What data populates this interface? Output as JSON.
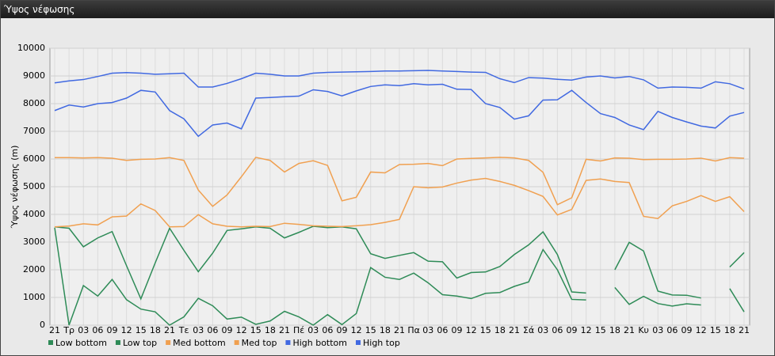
{
  "window_title": "Ύψος νέφωσης",
  "chart_data": {
    "type": "line",
    "y_label": "Ύψος νέφωσης (m)",
    "categories": [
      "21",
      "Tρ",
      "03",
      "06",
      "09",
      "12",
      "15",
      "18",
      "21",
      "Tε",
      "03",
      "06",
      "09",
      "12",
      "15",
      "18",
      "21",
      "Πέ",
      "03",
      "06",
      "09",
      "12",
      "15",
      "18",
      "21",
      "Πα",
      "03",
      "06",
      "09",
      "12",
      "15",
      "18",
      "21",
      "Σά",
      "03",
      "06",
      "09",
      "12",
      "15",
      "18",
      "21",
      "Κυ",
      "03",
      "06",
      "09",
      "12",
      "15",
      "18",
      "21"
    ],
    "ylim": [
      0,
      10000
    ],
    "yticks": [
      0,
      1000,
      2000,
      3000,
      4000,
      5000,
      6000,
      7000,
      8000,
      9000,
      10000
    ],
    "grid": true,
    "legend": "bottom",
    "series": [
      {
        "name": "Low bottom",
        "color": "#2e8b57",
        "values": [
          3520,
          0,
          1430,
          1050,
          1650,
          920,
          580,
          480,
          0,
          300,
          970,
          700,
          220,
          290,
          30,
          150,
          500,
          300,
          0,
          380,
          20,
          420,
          2080,
          1730,
          1650,
          1880,
          1530,
          1100,
          1050,
          960,
          1150,
          1180,
          1400,
          1560,
          2730,
          2000,
          930,
          910,
          null,
          1360,
          750,
          1040,
          780,
          690,
          770,
          730,
          null,
          1320,
          480
        ]
      },
      {
        "name": "Low top",
        "color": "#2e8b57",
        "values": [
          3550,
          3500,
          2830,
          3150,
          3380,
          2150,
          950,
          2250,
          3500,
          2700,
          1930,
          2600,
          3420,
          3480,
          3550,
          3500,
          3150,
          3350,
          3570,
          3520,
          3550,
          3480,
          2580,
          2410,
          2520,
          2620,
          2310,
          2290,
          1700,
          1900,
          1920,
          2120,
          2550,
          2900,
          3370,
          2550,
          1200,
          1160,
          null,
          2000,
          2990,
          2680,
          1230,
          1090,
          1080,
          980,
          null,
          2100,
          2620
        ]
      },
      {
        "name": "Med bottom",
        "color": "#f0a050",
        "values": [
          3550,
          3580,
          3660,
          3620,
          3910,
          3940,
          4380,
          4140,
          3550,
          3560,
          3990,
          3660,
          3570,
          3550,
          3570,
          3560,
          3680,
          3640,
          3590,
          3570,
          3560,
          3590,
          3630,
          3710,
          3820,
          5000,
          4960,
          4990,
          5130,
          5240,
          5300,
          5190,
          5050,
          4860,
          4650,
          3980,
          4180,
          5230,
          5280,
          5190,
          5150,
          3930,
          3850,
          4310,
          4470,
          4680,
          4470,
          4640,
          4100
        ]
      },
      {
        "name": "Med top",
        "color": "#f0a050",
        "values": [
          6050,
          6050,
          6040,
          6050,
          6030,
          5950,
          5990,
          6000,
          6050,
          5950,
          4880,
          4290,
          4700,
          5360,
          6060,
          5950,
          5530,
          5840,
          5940,
          5770,
          4490,
          4620,
          5530,
          5500,
          5800,
          5810,
          5840,
          5760,
          6000,
          6020,
          6040,
          6060,
          6040,
          5950,
          5520,
          4350,
          4600,
          5990,
          5930,
          6040,
          6030,
          5980,
          5990,
          5990,
          6000,
          6030,
          5930,
          6050,
          6030
        ]
      },
      {
        "name": "High bottom",
        "color": "#4169e1",
        "values": [
          7750,
          7950,
          7880,
          8000,
          8040,
          8200,
          8480,
          8420,
          7750,
          7450,
          6820,
          7230,
          7300,
          7090,
          8200,
          8220,
          8250,
          8270,
          8500,
          8440,
          8280,
          8460,
          8620,
          8680,
          8650,
          8720,
          8680,
          8700,
          8520,
          8510,
          8000,
          7860,
          7440,
          7560,
          8130,
          8140,
          8480,
          8040,
          7640,
          7500,
          7230,
          7060,
          7720,
          7500,
          7340,
          7190,
          7120,
          7550,
          7680
        ]
      },
      {
        "name": "High top",
        "color": "#4169e1",
        "values": [
          8750,
          8820,
          8870,
          8980,
          9100,
          9120,
          9100,
          9060,
          9080,
          9100,
          8600,
          8600,
          8730,
          8900,
          9100,
          9060,
          9000,
          9000,
          9100,
          9130,
          9140,
          9150,
          9160,
          9180,
          9180,
          9190,
          9200,
          9180,
          9160,
          9140,
          9130,
          8900,
          8760,
          8940,
          8920,
          8880,
          8850,
          8960,
          9000,
          8930,
          8980,
          8860,
          8560,
          8600,
          8590,
          8560,
          8790,
          8720,
          8530
        ]
      }
    ]
  }
}
